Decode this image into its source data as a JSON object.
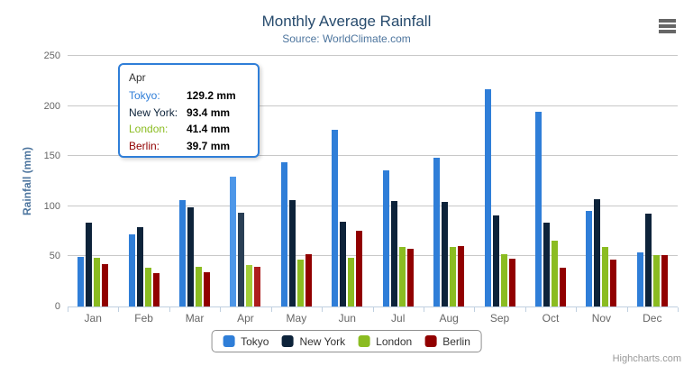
{
  "chart": {
    "title": "Monthly Average Rainfall",
    "subtitle": "Source: WorldClimate.com",
    "credits": "Highcharts.com"
  },
  "colors": {
    "title": "#274b6d",
    "subtitle": "#4d759e",
    "axis_title": "#4d759e",
    "axis_labels": "#666666",
    "gridline": "#c8c8c8",
    "axis_line": "#c0d0e0",
    "tooltip_border": "#2f7ed8",
    "tooltip_header": "#333333",
    "legend_border": "#909090",
    "credits_text": "#999999",
    "menu_icon": "#666666"
  },
  "chart_data": {
    "type": "bar",
    "title": "Monthly Average Rainfall",
    "subtitle": "Source: WorldClimate.com",
    "categories": [
      "Jan",
      "Feb",
      "Mar",
      "Apr",
      "May",
      "Jun",
      "Jul",
      "Aug",
      "Sep",
      "Oct",
      "Nov",
      "Dec"
    ],
    "series": [
      {
        "name": "Tokyo",
        "color": "#2f7ed8",
        "hover_color": "#4e97e8",
        "values": [
          49.9,
          71.5,
          106.4,
          129.2,
          144.0,
          176.0,
          135.6,
          148.5,
          216.4,
          194.1,
          95.6,
          54.4
        ]
      },
      {
        "name": "New York",
        "color": "#0d233a",
        "hover_color": "#2a3f55",
        "values": [
          83.6,
          78.8,
          98.5,
          93.4,
          106.0,
          84.5,
          105.0,
          104.3,
          91.2,
          83.5,
          106.6,
          92.3
        ]
      },
      {
        "name": "London",
        "color": "#8bbc21",
        "hover_color": "#a2ce38",
        "values": [
          48.9,
          38.8,
          39.3,
          41.4,
          47.0,
          48.3,
          59.0,
          59.6,
          52.4,
          65.2,
          59.3,
          51.2
        ]
      },
      {
        "name": "Berlin",
        "color": "#910000",
        "hover_color": "#ad1e1e",
        "values": [
          42.4,
          33.2,
          34.5,
          39.7,
          52.6,
          75.5,
          57.4,
          60.4,
          47.6,
          39.1,
          46.8,
          51.1
        ]
      }
    ],
    "xlabel": "",
    "ylabel": "Rainfall (mm)",
    "ylim": [
      0,
      250
    ],
    "y_tick_interval": 50,
    "grid": true,
    "legend_position": "bottom",
    "highlighted_category": "Apr"
  },
  "tooltip": {
    "header": "Apr",
    "rows": [
      {
        "label": "Tokyo:",
        "value": "129.2 mm",
        "color": "#2f7ed8"
      },
      {
        "label": "New York:",
        "value": "93.4 mm",
        "color": "#0d233a"
      },
      {
        "label": "London:",
        "value": "41.4 mm",
        "color": "#8bbc21"
      },
      {
        "label": "Berlin:",
        "value": "39.7 mm",
        "color": "#910000"
      }
    ]
  }
}
